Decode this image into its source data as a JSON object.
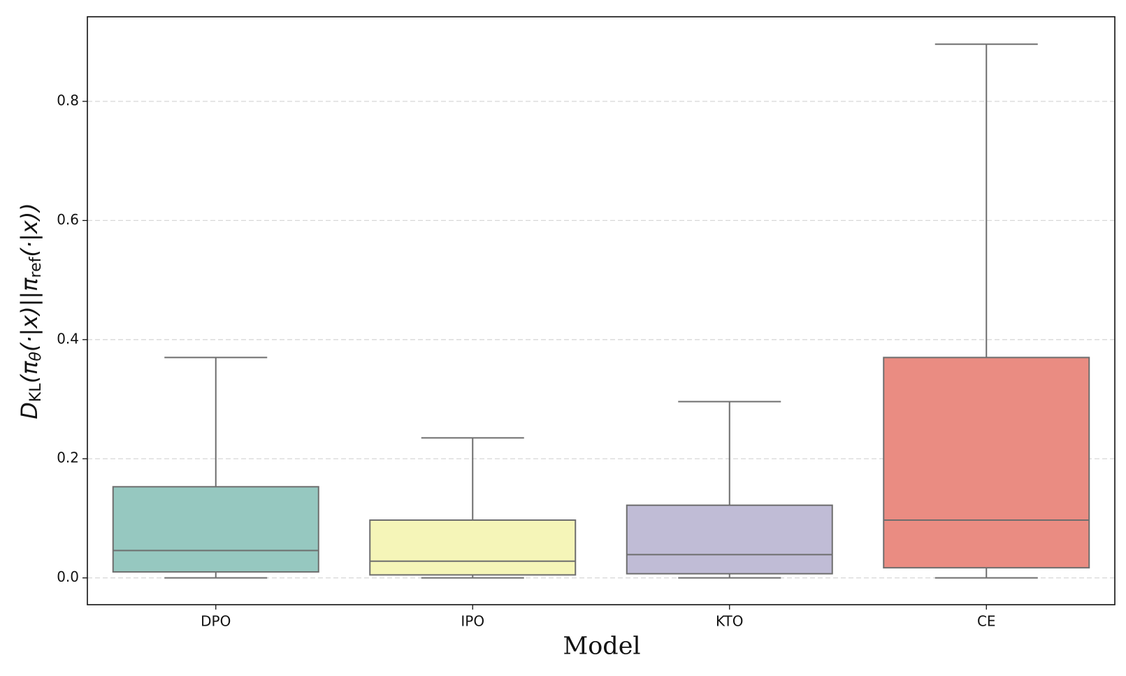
{
  "chart_data": {
    "type": "box",
    "xlabel": "Model",
    "ylabel": [
      "D",
      "KL",
      "(π",
      "θ",
      "(·|x)||π",
      "ref",
      "(·|x))"
    ],
    "categories": [
      "DPO",
      "IPO",
      "KTO",
      "CE"
    ],
    "colors": [
      "#96c8c0",
      "#f5f5b8",
      "#c0bcd6",
      "#ea8c82"
    ],
    "boxes": [
      {
        "whislo": 0,
        "q1": 0.01,
        "med": 0.046,
        "q3": 0.153,
        "whishi": 0.37
      },
      {
        "whislo": 0,
        "q1": 0.005,
        "med": 0.028,
        "q3": 0.097,
        "whishi": 0.235
      },
      {
        "whislo": 0,
        "q1": 0.007,
        "med": 0.039,
        "q3": 0.122,
        "whishi": 0.296
      },
      {
        "whislo": 0,
        "q1": 0.017,
        "med": 0.097,
        "q3": 0.37,
        "whishi": 0.896
      }
    ],
    "ylim": [
      -0.045,
      0.942
    ],
    "yticks": [
      {
        "value": 0,
        "label": "0.0"
      },
      0.2,
      0.4,
      0.6,
      0.8
    ],
    "grid": true
  }
}
